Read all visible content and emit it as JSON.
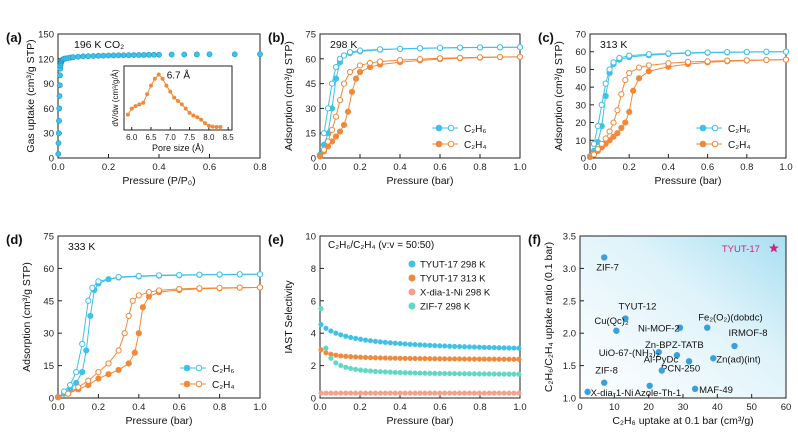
{
  "colors": {
    "c2h6": "#3fc1e8",
    "c2h4": "#f08a3a",
    "tyut298": "#3fc1e8",
    "tyut313": "#f08a3a",
    "xdia": "#f5a08a",
    "zif7": "#5fd9c4",
    "star": "#d6207a",
    "point": "#3aa0dc",
    "inset": "#f08a3a"
  },
  "chart_data": [
    {
      "panel": "a",
      "label": "(a)",
      "type": "scatter",
      "title": "196 K CO₂",
      "xlabel": "Pressure (P/P₀)",
      "ylabel": "Gas uptake (cm³/g STP)",
      "xlim": [
        0,
        0.8
      ],
      "ylim": [
        0,
        150
      ],
      "xticks": [
        "0.0",
        "0.2",
        "0.4",
        "0.6",
        "0.8"
      ],
      "yticks": [
        "0",
        "30",
        "60",
        "90",
        "120",
        "150"
      ],
      "series": [
        {
          "name": "CO2",
          "x": [
            0.001,
            0.002,
            0.003,
            0.004,
            0.005,
            0.006,
            0.007,
            0.008,
            0.009,
            0.01,
            0.012,
            0.014,
            0.016,
            0.018,
            0.02,
            0.025,
            0.03,
            0.04,
            0.05,
            0.06,
            0.08,
            0.1,
            0.12,
            0.14,
            0.16,
            0.18,
            0.2,
            0.22,
            0.24,
            0.26,
            0.28,
            0.3,
            0.32,
            0.34,
            0.36,
            0.38,
            0.4,
            0.45,
            0.5,
            0.55,
            0.6,
            0.7,
            0.8
          ],
          "y": [
            5,
            18,
            30,
            45,
            60,
            75,
            88,
            100,
            108,
            112,
            115,
            117,
            118,
            119,
            119.5,
            120,
            120.5,
            121,
            121.5,
            122,
            122.5,
            123,
            123.2,
            123.4,
            123.6,
            123.8,
            124,
            124.1,
            124.2,
            124.3,
            124.4,
            124.5,
            124.6,
            124.7,
            124.8,
            124.9,
            125,
            125.1,
            125.2,
            125.3,
            125.4,
            125.5,
            125.6
          ]
        }
      ],
      "inset": {
        "xlabel": "Pore size (Å)",
        "ylabel": "dV/dw (cm³/g/Å)",
        "xticks": [
          "6.0",
          "6.5",
          "7.0",
          "7.5",
          "8.0",
          "8.5"
        ],
        "xlim": [
          5.8,
          8.6
        ],
        "ylim": [
          0,
          0.75
        ],
        "annotation": "6.7 Å",
        "x": [
          5.9,
          6.0,
          6.1,
          6.2,
          6.3,
          6.4,
          6.5,
          6.6,
          6.7,
          6.8,
          6.9,
          7.0,
          7.1,
          7.2,
          7.3,
          7.4,
          7.5,
          7.6,
          7.7,
          7.8,
          7.9,
          8.0,
          8.1,
          8.2,
          8.3
        ],
        "y": [
          0.18,
          0.25,
          0.28,
          0.3,
          0.32,
          0.42,
          0.52,
          0.6,
          0.65,
          0.6,
          0.52,
          0.45,
          0.38,
          0.34,
          0.3,
          0.25,
          0.2,
          0.17,
          0.15,
          0.12,
          0.08,
          0.05,
          0.04,
          0.035,
          0.035
        ]
      }
    },
    {
      "panel": "b",
      "label": "(b)",
      "type": "line",
      "title": "298 K",
      "xlabel": "Pressure (bar)",
      "ylabel": "Adsorption (cm³/g STP)",
      "xlim": [
        0,
        1
      ],
      "ylim": [
        0,
        75
      ],
      "xticks": [
        "0.0",
        "0.2",
        "0.4",
        "0.6",
        "0.8",
        "1.0"
      ],
      "yticks": [
        "0",
        "15",
        "30",
        "45",
        "60",
        "75"
      ],
      "legend": [
        "C₂H₆",
        "C₂H₄"
      ],
      "series": [
        {
          "name": "C2H6 ads",
          "x": [
            0,
            0.02,
            0.04,
            0.06,
            0.08,
            0.1,
            0.12,
            0.15,
            0.2,
            0.3,
            0.4,
            0.5,
            0.6,
            0.7,
            0.8,
            0.9,
            1.0
          ],
          "y": [
            2,
            8,
            15,
            30,
            48,
            58,
            62,
            63.5,
            64.5,
            65.5,
            66,
            66.3,
            66.5,
            66.7,
            66.8,
            66.9,
            67
          ]
        },
        {
          "name": "C2H6 des",
          "x": [
            1.0,
            0.9,
            0.8,
            0.7,
            0.6,
            0.5,
            0.4,
            0.3,
            0.2,
            0.15,
            0.12,
            0.1,
            0.08,
            0.06,
            0.04,
            0.02
          ],
          "y": [
            67,
            67,
            66.9,
            66.8,
            66.6,
            66.4,
            66,
            65.7,
            65,
            64,
            62,
            60,
            55,
            45,
            30,
            15
          ]
        },
        {
          "name": "C2H4 ads",
          "x": [
            0,
            0.02,
            0.04,
            0.06,
            0.08,
            0.1,
            0.12,
            0.14,
            0.16,
            0.18,
            0.2,
            0.25,
            0.3,
            0.4,
            0.5,
            0.6,
            0.7,
            0.8,
            0.9,
            1.0
          ],
          "y": [
            1,
            4,
            7,
            10,
            13,
            16,
            20,
            28,
            40,
            48,
            52,
            55,
            56.5,
            58,
            59,
            59.8,
            60.3,
            60.7,
            61,
            61.2
          ]
        },
        {
          "name": "C2H4 des",
          "x": [
            1.0,
            0.9,
            0.8,
            0.7,
            0.6,
            0.5,
            0.4,
            0.3,
            0.25,
            0.2,
            0.15,
            0.12,
            0.1,
            0.08,
            0.06,
            0.04,
            0.02
          ],
          "y": [
            61.2,
            61.1,
            60.9,
            60.6,
            60.3,
            59.8,
            59.2,
            58.3,
            57.5,
            56,
            52,
            45,
            35,
            25,
            17,
            10,
            5
          ]
        }
      ]
    },
    {
      "panel": "c",
      "label": "(c)",
      "type": "line",
      "title": "313 K",
      "xlabel": "Pressure (bar)",
      "ylabel": "Adsorption (cm³/g STP)",
      "xlim": [
        0,
        1
      ],
      "ylim": [
        0,
        70
      ],
      "xticks": [
        "0.0",
        "0.2",
        "0.4",
        "0.6",
        "0.8",
        "1.0"
      ],
      "yticks": [
        "0",
        "10",
        "20",
        "30",
        "40",
        "50",
        "60",
        "70"
      ],
      "legend": [
        "C₂H₆",
        "C₂H₄"
      ],
      "series": [
        {
          "name": "C2H6 ads",
          "x": [
            0,
            0.02,
            0.04,
            0.06,
            0.08,
            0.1,
            0.12,
            0.15,
            0.2,
            0.3,
            0.4,
            0.5,
            0.6,
            0.7,
            0.8,
            0.9,
            1.0
          ],
          "y": [
            1,
            4,
            9,
            18,
            35,
            48,
            53,
            55.5,
            57,
            58,
            58.7,
            59.1,
            59.4,
            59.6,
            59.8,
            59.9,
            60
          ]
        },
        {
          "name": "C2H6 des",
          "x": [
            1.0,
            0.9,
            0.8,
            0.7,
            0.6,
            0.5,
            0.4,
            0.3,
            0.2,
            0.15,
            0.12,
            0.1,
            0.08,
            0.06,
            0.04,
            0.02
          ],
          "y": [
            60,
            60,
            59.9,
            59.8,
            59.6,
            59.4,
            59,
            58.6,
            57.8,
            56.5,
            54,
            50,
            42,
            30,
            18,
            8
          ]
        },
        {
          "name": "C2H4 ads",
          "x": [
            0,
            0.02,
            0.04,
            0.06,
            0.08,
            0.1,
            0.12,
            0.14,
            0.16,
            0.18,
            0.2,
            0.22,
            0.25,
            0.3,
            0.4,
            0.5,
            0.6,
            0.7,
            0.8,
            0.9,
            1.0
          ],
          "y": [
            0.5,
            2,
            4,
            6,
            8,
            10,
            12,
            14,
            17,
            20,
            26,
            38,
            45,
            49,
            51.5,
            53,
            54,
            54.6,
            55,
            55.3,
            55.5
          ]
        },
        {
          "name": "C2H4 des",
          "x": [
            1.0,
            0.9,
            0.8,
            0.7,
            0.6,
            0.5,
            0.4,
            0.3,
            0.25,
            0.2,
            0.18,
            0.16,
            0.14,
            0.12,
            0.1,
            0.08,
            0.06,
            0.04,
            0.02
          ],
          "y": [
            55.5,
            55.4,
            55.2,
            55,
            54.6,
            54.2,
            53.5,
            52.3,
            51,
            48,
            44,
            36,
            27,
            20,
            15,
            11,
            8,
            5,
            2
          ]
        }
      ]
    },
    {
      "panel": "d",
      "label": "(d)",
      "type": "line",
      "title": "333 K",
      "xlabel": "Pressure (bar)",
      "ylabel": "Adsorption (cm³/g STP)",
      "xlim": [
        0,
        1
      ],
      "ylim": [
        0,
        75
      ],
      "xticks": [
        "0.0",
        "0.2",
        "0.4",
        "0.6",
        "0.8",
        "1.0"
      ],
      "yticks": [
        "0",
        "15",
        "30",
        "45",
        "60",
        "75"
      ],
      "legend": [
        "C₂H₆",
        "C₂H₄"
      ],
      "series": [
        {
          "name": "C2H6 ads",
          "x": [
            0,
            0.03,
            0.06,
            0.09,
            0.12,
            0.14,
            0.16,
            0.18,
            0.2,
            0.25,
            0.3,
            0.4,
            0.5,
            0.6,
            0.7,
            0.8,
            0.9,
            1.0
          ],
          "y": [
            0.5,
            2,
            4,
            7,
            12,
            22,
            38,
            50,
            53,
            55,
            55.8,
            56.3,
            56.6,
            56.8,
            57,
            57.1,
            57.2,
            57.3
          ]
        },
        {
          "name": "C2H6 des",
          "x": [
            1.0,
            0.9,
            0.8,
            0.7,
            0.6,
            0.5,
            0.4,
            0.3,
            0.2,
            0.17,
            0.15,
            0.12,
            0.09,
            0.06,
            0.03
          ],
          "y": [
            57.3,
            57.3,
            57.2,
            57.1,
            57,
            56.8,
            56.5,
            56,
            54,
            51,
            45,
            25,
            12,
            6,
            3
          ]
        },
        {
          "name": "C2H4 ads",
          "x": [
            0,
            0.05,
            0.1,
            0.15,
            0.2,
            0.25,
            0.3,
            0.35,
            0.38,
            0.4,
            0.42,
            0.45,
            0.5,
            0.6,
            0.7,
            0.8,
            0.9,
            1.0
          ],
          "y": [
            0.3,
            2,
            4,
            6,
            9,
            11,
            13,
            16,
            21,
            30,
            42,
            47,
            49,
            50,
            50.5,
            50.8,
            51,
            51.2
          ]
        },
        {
          "name": "C2H4 des",
          "x": [
            1.0,
            0.9,
            0.8,
            0.7,
            0.6,
            0.5,
            0.45,
            0.4,
            0.37,
            0.35,
            0.33,
            0.3,
            0.25,
            0.2,
            0.15,
            0.1,
            0.05
          ],
          "y": [
            51.2,
            51.1,
            51,
            50.8,
            50.5,
            49.8,
            49,
            47.5,
            45,
            38,
            30,
            22,
            16,
            12,
            8,
            5,
            2
          ]
        }
      ]
    },
    {
      "panel": "e",
      "label": "(e)",
      "type": "scatter",
      "title": "C₂H₆/C₂H₄ (v:v = 50:50)",
      "xlabel": "Pressure (bar)",
      "ylabel": "IAST Selectivity",
      "xlim": [
        0,
        1
      ],
      "ylim": [
        0,
        10
      ],
      "xticks": [
        "0.0",
        "0.2",
        "0.4",
        "0.6",
        "0.8",
        "1.0"
      ],
      "yticks": [
        "0",
        "2",
        "4",
        "6",
        "8",
        "10"
      ],
      "series": [
        {
          "name": "TYUT-17 298 K",
          "a": 2.6,
          "b": 0.5,
          "c": 0.1,
          "n": 0.6
        },
        {
          "name": "TYUT-17 313 K",
          "a": 2.3,
          "b": 0.09,
          "c": 0.03,
          "n": 0.6
        },
        {
          "name": "X-dia-1-Ni 298 K",
          "a": 0.3,
          "b": 0.0,
          "c": 0.05,
          "n": 1.0
        },
        {
          "name": "ZIF-7 298 K",
          "a": 1.4,
          "b": 0.07,
          "c": 0.012,
          "n": 1.0
        }
      ]
    },
    {
      "panel": "f",
      "label": "(f)",
      "type": "scatter",
      "title": "",
      "xlabel": "C₂H₆ uptake at 0.1 bar (cm³/g)",
      "ylabel": "C₂H₆/C₂H₄ uptake ratio (0.1 bar)",
      "xlim": [
        -2,
        66
      ],
      "ylim": [
        0.9,
        3.55
      ],
      "xticks": [
        "0",
        "10",
        "20",
        "30",
        "40",
        "50",
        "60"
      ],
      "yticks": [
        "1.0",
        "1.5",
        "2.0",
        "2.5",
        "3.0",
        "3.5"
      ],
      "points": [
        {
          "label": "TYUT-17",
          "x": 62,
          "y": 3.35,
          "star": true
        },
        {
          "label": "ZIF-7",
          "x": 6,
          "y": 3.2
        },
        {
          "label": "TYUT-12",
          "x": 13,
          "y": 2.2
        },
        {
          "label": "Cu(Qc)₂",
          "x": 10,
          "y": 2.0
        },
        {
          "label": "Ni-MOF-2",
          "x": 31,
          "y": 2.05
        },
        {
          "label": "Fe₂(O₂)(dobdc)",
          "x": 40,
          "y": 2.05
        },
        {
          "label": "IRMOF-8",
          "x": 49,
          "y": 1.75
        },
        {
          "label": "UiO-67-(NH₂)₂",
          "x": 24,
          "y": 1.65
        },
        {
          "label": "Zn-BPZ-TATB",
          "x": 30,
          "y": 1.6
        },
        {
          "label": "Zn(ad)(int)",
          "x": 42,
          "y": 1.55
        },
        {
          "label": "PCN-250",
          "x": 34,
          "y": 1.5
        },
        {
          "label": "Al-PyDc",
          "x": 25,
          "y": 1.35
        },
        {
          "label": "ZIF-8",
          "x": 6,
          "y": 1.15
        },
        {
          "label": "Azole-Th-1",
          "x": 21,
          "y": 1.1
        },
        {
          "label": "MAF-49",
          "x": 36,
          "y": 1.05
        },
        {
          "label": "X-dia-1-Ni",
          "x": 0.5,
          "y": 1.0
        }
      ]
    }
  ]
}
